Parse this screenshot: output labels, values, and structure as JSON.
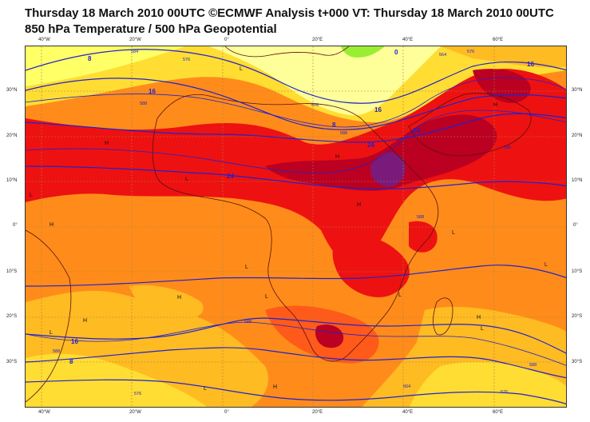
{
  "header": {
    "line1": "Thursday 18 March 2010 00UTC ©ECMWF Analysis t+000 VT: Thursday 18 March 2010 00UTC",
    "line2": "850 hPa Temperature / 500 hPa Geopotential"
  },
  "axes": {
    "lon_ticks": [
      "40°W",
      "20°W",
      "0°",
      "20°E",
      "40°E",
      "60°E"
    ],
    "lat_ticks": [
      "30°N",
      "20°N",
      "10°N",
      "0°",
      "10°S",
      "20°S",
      "30°S"
    ]
  },
  "colors": {
    "cool_yellow": "#ffff66",
    "pale_yellow": "#ffff99",
    "yellow_orange": "#ffdd33",
    "light_orange": "#ffbb22",
    "orange": "#ff8c1a",
    "red_orange": "#ff5a1a",
    "red": "#ee1111",
    "dark_red": "#bb0022",
    "purple": "#7a1a7a",
    "green": "#99ee33",
    "contour_blue": "#2222cc",
    "coast": "#5a1010"
  },
  "temperature_labels": [
    "8",
    "16",
    "16",
    "8",
    "24",
    "24",
    "16",
    "24",
    "0",
    "8",
    "16"
  ],
  "geopotential_labels": [
    "584",
    "576",
    "588",
    "576",
    "588",
    "564",
    "576",
    "588",
    "588",
    "588",
    "588",
    "576",
    "564",
    "588",
    "576"
  ],
  "pressure_marks": [
    "H",
    "L",
    "H",
    "L",
    "L",
    "H",
    "H",
    "L",
    "L",
    "H",
    "H",
    "L",
    "L",
    "L",
    "H",
    "L",
    "H",
    "L",
    "H",
    "L"
  ]
}
